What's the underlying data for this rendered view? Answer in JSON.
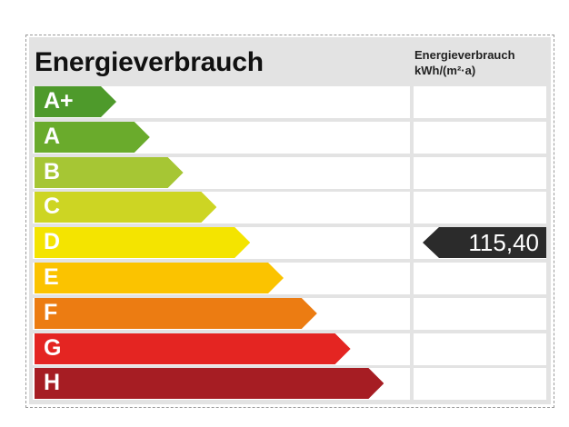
{
  "title": "Energieverbrauch",
  "column_header": {
    "line1": "Energieverbrauch",
    "line2": "kWh/(m²·a)"
  },
  "classes": [
    {
      "label": "A+",
      "color": "#4e9a2b"
    },
    {
      "label": "A",
      "color": "#6aab2c"
    },
    {
      "label": "B",
      "color": "#a6c634"
    },
    {
      "label": "C",
      "color": "#cdd523"
    },
    {
      "label": "D",
      "color": "#f4e400"
    },
    {
      "label": "E",
      "color": "#fbc300"
    },
    {
      "label": "F",
      "color": "#ec7c12"
    },
    {
      "label": "G",
      "color": "#e42522"
    },
    {
      "label": "H",
      "color": "#a61d23"
    }
  ],
  "indicator": {
    "value": "115,40",
    "class": "D",
    "color": "#2b2b2b"
  }
}
